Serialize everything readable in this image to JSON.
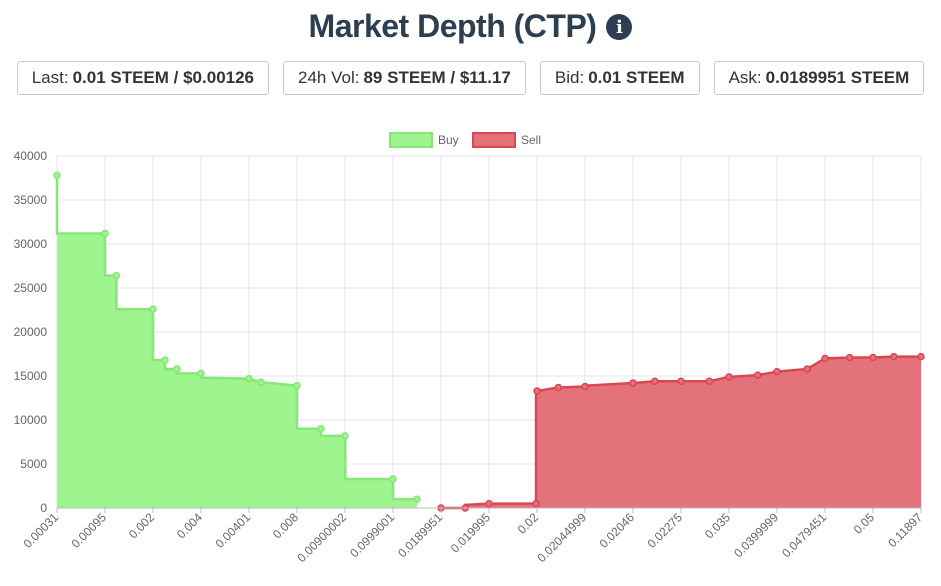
{
  "header": {
    "title": "Market Depth (CTP)",
    "info_icon": "info-circle-icon"
  },
  "stats": [
    {
      "label": "Last:",
      "value": "0.01 STEEM / $0.00126"
    },
    {
      "label": "24h Vol:",
      "value": "89 STEEM / $11.17"
    },
    {
      "label": "Bid:",
      "value": "0.01 STEEM"
    },
    {
      "label": "Ask:",
      "value": "0.0189951 STEEM"
    }
  ],
  "chart_data": {
    "type": "area",
    "title": "",
    "xlabel": "",
    "ylabel": "",
    "ylim": [
      0,
      40000
    ],
    "yticks": [
      0,
      5000,
      10000,
      15000,
      20000,
      25000,
      30000,
      35000,
      40000
    ],
    "grid": true,
    "legend_position": "top-center",
    "x_tick_labels": [
      "0.00031",
      "0.00095",
      "0.002",
      "0.004",
      "0.00401",
      "0.008",
      "0.00900002",
      "0.0999001",
      "0.0189951",
      "0.019995",
      "0.02",
      "0.02044999",
      "0.02046",
      "0.02275",
      "0.035",
      "0.0399999",
      "0.0479451",
      "0.05",
      "0.11897"
    ],
    "series": [
      {
        "name": "Buy",
        "color": "#9ef58f",
        "line_color": "#86e676",
        "points": [
          {
            "x": 0.00031,
            "y": 37800
          },
          {
            "x": 0.00031,
            "y": 31200
          },
          {
            "x": 0.00095,
            "y": 31200
          },
          {
            "x": 0.00095,
            "y": 26400
          },
          {
            "x": 0.0012,
            "y": 26400
          },
          {
            "x": 0.0012,
            "y": 22600
          },
          {
            "x": 0.002,
            "y": 22600
          },
          {
            "x": 0.002,
            "y": 16800
          },
          {
            "x": 0.0025,
            "y": 16800
          },
          {
            "x": 0.0025,
            "y": 15800
          },
          {
            "x": 0.003,
            "y": 15800
          },
          {
            "x": 0.003,
            "y": 15300
          },
          {
            "x": 0.004,
            "y": 15300
          },
          {
            "x": 0.004,
            "y": 14900
          },
          {
            "x": 0.0040001,
            "y": 14800
          },
          {
            "x": 0.00401,
            "y": 14700
          },
          {
            "x": 0.005,
            "y": 14300
          },
          {
            "x": 0.008,
            "y": 13900
          },
          {
            "x": 0.008,
            "y": 9000
          },
          {
            "x": 0.0085,
            "y": 9000
          },
          {
            "x": 0.0085,
            "y": 8200
          },
          {
            "x": 0.00900002,
            "y": 8200
          },
          {
            "x": 0.0095,
            "y": 8100
          },
          {
            "x": 0.0095,
            "y": 3300
          },
          {
            "x": 0.0999001,
            "y": 3300
          },
          {
            "x": 0.0999001,
            "y": 1000
          },
          {
            "x": 0.01,
            "y": 1000
          }
        ]
      },
      {
        "name": "Sell",
        "color": "#e3727a",
        "line_color": "#d94752",
        "points": [
          {
            "x": 0.0189951,
            "y": 0
          },
          {
            "x": 0.0195,
            "y": 0
          },
          {
            "x": 0.0195,
            "y": 350
          },
          {
            "x": 0.019995,
            "y": 500
          },
          {
            "x": 0.0199999,
            "y": 500
          },
          {
            "x": 0.0199999,
            "y": 12800
          },
          {
            "x": 0.02,
            "y": 13300
          },
          {
            "x": 0.0202,
            "y": 13700
          },
          {
            "x": 0.02044999,
            "y": 13800
          },
          {
            "x": 0.02045,
            "y": 13900
          },
          {
            "x": 0.02046,
            "y": 14200
          },
          {
            "x": 0.0215,
            "y": 14400
          },
          {
            "x": 0.02275,
            "y": 14400
          },
          {
            "x": 0.03,
            "y": 14400
          },
          {
            "x": 0.035,
            "y": 14900
          },
          {
            "x": 0.038,
            "y": 15100
          },
          {
            "x": 0.0399999,
            "y": 15500
          },
          {
            "x": 0.045,
            "y": 15800
          },
          {
            "x": 0.0479451,
            "y": 17000
          },
          {
            "x": 0.049,
            "y": 17100
          },
          {
            "x": 0.05,
            "y": 17100
          },
          {
            "x": 0.08,
            "y": 17200
          },
          {
            "x": 0.11897,
            "y": 17200
          }
        ]
      }
    ]
  }
}
